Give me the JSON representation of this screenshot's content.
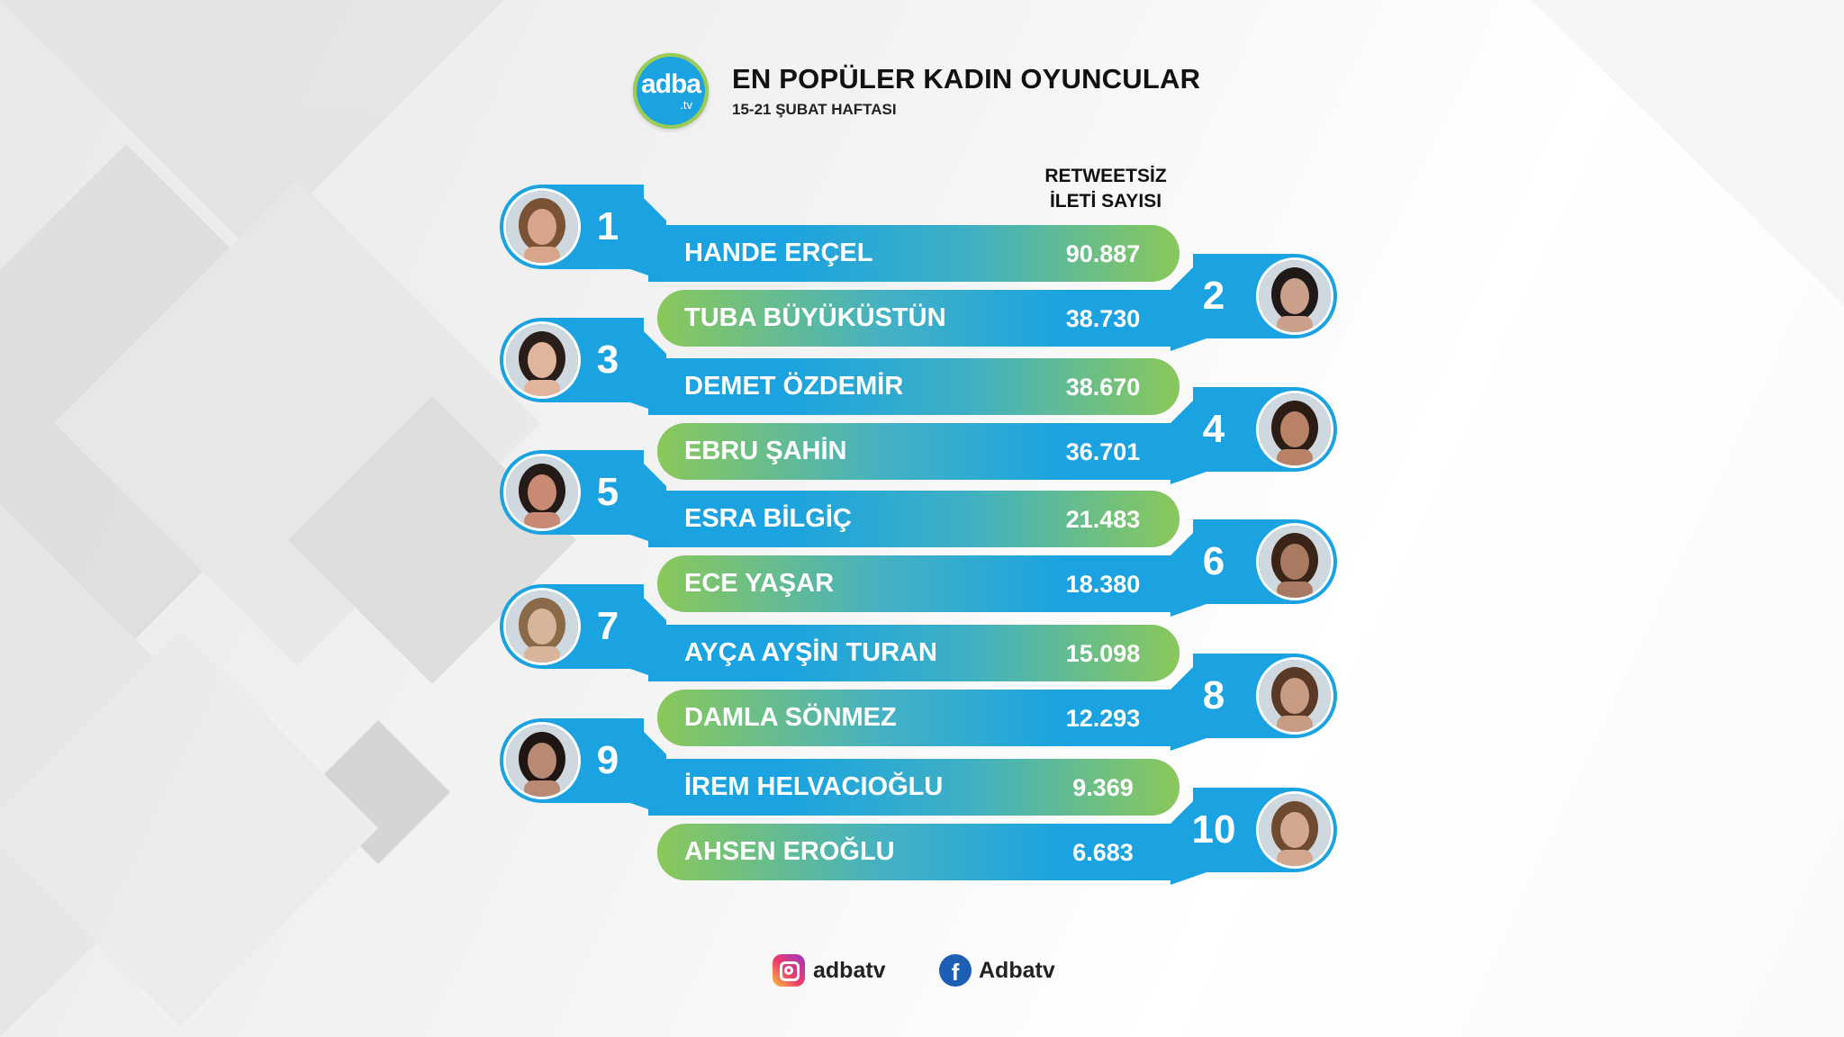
{
  "header": {
    "logo_text": "adba",
    "logo_sub": ".tv",
    "title": "EN POPÜLER KADIN OYUNCULAR",
    "subtitle": "15-21 ŞUBAT HAFTASI",
    "column_header_line1": "RETWEETSİZ",
    "column_header_line2": "İLETİ SAYISI"
  },
  "chart_data": {
    "type": "bar",
    "ylabel": "RETWEETSİZ İLETİ SAYISI",
    "categories": [
      "HANDE ERÇEL",
      "TUBA BÜYÜKÜSTÜN",
      "DEMET ÖZDEMİR",
      "EBRU ŞAHİN",
      "ESRA BİLGİÇ",
      "ECE YAŞAR",
      "AYÇA AYŞİN TURAN",
      "DAMLA SÖNMEZ",
      "İREM HELVACIOĞLU",
      "AHSEN EROĞLU"
    ],
    "values": [
      90887,
      38730,
      38670,
      36701,
      21483,
      18380,
      15098,
      12293,
      9369,
      6683
    ],
    "value_labels": [
      "90.887",
      "38.730",
      "38.670",
      "36.701",
      "21.483",
      "18.380",
      "15.098",
      "12.293",
      "9.369",
      "6.683"
    ],
    "ranks": [
      "1",
      "2",
      "3",
      "4",
      "5",
      "6",
      "7",
      "8",
      "9",
      "10"
    ]
  },
  "colors": {
    "accent_blue": "#1aa3e0",
    "accent_green": "#8ac85a",
    "facebook_blue": "#1c5fb4"
  },
  "footer": {
    "instagram_icon": "instagram-icon",
    "instagram_handle": "adbatv",
    "facebook_icon": "facebook-icon",
    "facebook_handle": "Adbatv"
  }
}
